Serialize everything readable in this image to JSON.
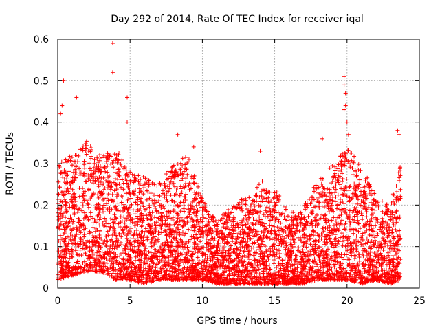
{
  "chart_data": {
    "type": "scatter",
    "title": "Day 292 of 2014, Rate Of TEC Index for receiver iqal",
    "xlabel": "GPS time / hours",
    "ylabel": "ROTI / TECUs",
    "xlim": [
      0,
      25
    ],
    "ylim": [
      0,
      0.6
    ],
    "xticks": [
      0,
      5,
      10,
      15,
      20,
      25
    ],
    "yticks": [
      0,
      0.1,
      0.2,
      0.3,
      0.4,
      0.5,
      0.6
    ],
    "xtick_labels": [
      "0",
      "5",
      "10",
      "15",
      "20",
      "25"
    ],
    "ytick_labels": [
      "0",
      "0.1",
      "0.2",
      "0.3",
      "0.4",
      "0.5",
      "0.6"
    ],
    "grid": true,
    "marker": "+",
    "color": "#ff0000",
    "series": [
      {
        "name": "ROTI",
        "data_span_hours": [
          0,
          23.7
        ],
        "notable_points": [
          {
            "x": 3.8,
            "y": 0.59
          },
          {
            "x": 3.8,
            "y": 0.52
          },
          {
            "x": 0.4,
            "y": 0.5
          },
          {
            "x": 0.3,
            "y": 0.44
          },
          {
            "x": 0.2,
            "y": 0.42
          },
          {
            "x": 1.3,
            "y": 0.46
          },
          {
            "x": 4.8,
            "y": 0.46
          },
          {
            "x": 4.8,
            "y": 0.4
          },
          {
            "x": 19.8,
            "y": 0.51
          },
          {
            "x": 19.8,
            "y": 0.49
          },
          {
            "x": 19.9,
            "y": 0.47
          },
          {
            "x": 19.9,
            "y": 0.44
          },
          {
            "x": 19.8,
            "y": 0.43
          },
          {
            "x": 20.1,
            "y": 0.37
          },
          {
            "x": 20.0,
            "y": 0.4
          },
          {
            "x": 23.5,
            "y": 0.38
          },
          {
            "x": 23.6,
            "y": 0.37
          },
          {
            "x": 14.0,
            "y": 0.33
          },
          {
            "x": 18.3,
            "y": 0.36
          },
          {
            "x": 8.3,
            "y": 0.37
          },
          {
            "x": 9.4,
            "y": 0.34
          }
        ],
        "envelope": {
          "hours": [
            0,
            1,
            2,
            3,
            4,
            5,
            6,
            7,
            8,
            9,
            10,
            11,
            12,
            13,
            14,
            15,
            16,
            17,
            18,
            19,
            20,
            21,
            22,
            23,
            23.7
          ],
          "typical_max": [
            0.3,
            0.33,
            0.36,
            0.32,
            0.34,
            0.28,
            0.27,
            0.25,
            0.3,
            0.32,
            0.22,
            0.16,
            0.2,
            0.22,
            0.26,
            0.25,
            0.18,
            0.2,
            0.26,
            0.3,
            0.34,
            0.3,
            0.22,
            0.2,
            0.3
          ],
          "typical_min": [
            0.02,
            0.03,
            0.04,
            0.04,
            0.02,
            0.02,
            0.01,
            0.02,
            0.02,
            0.02,
            0.02,
            0.01,
            0.01,
            0.01,
            0.01,
            0.01,
            0.01,
            0.01,
            0.02,
            0.02,
            0.02,
            0.01,
            0.02,
            0.01,
            0.02
          ]
        }
      }
    ]
  }
}
